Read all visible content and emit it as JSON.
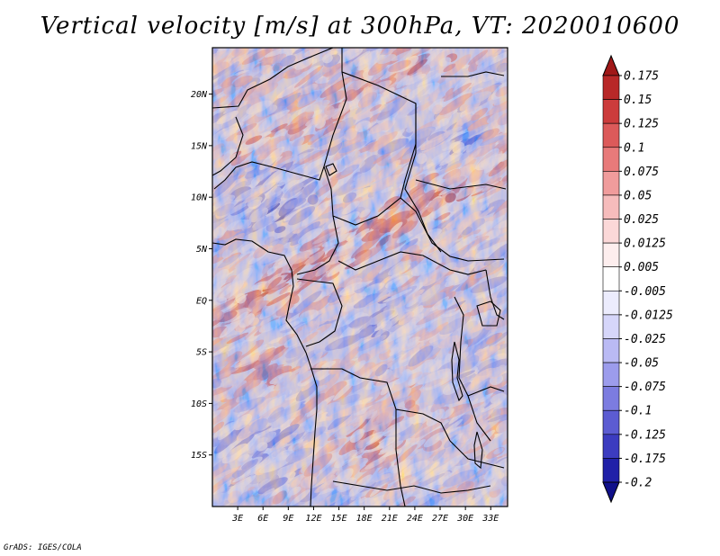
{
  "title": "Vertical velocity [m/s] at 300hPa, VT: 2020010600",
  "credit": "GrADS: IGES/COLA",
  "map": {
    "variable": "Vertical velocity",
    "units": "m/s",
    "level": "300hPa",
    "valid_time": "2020010600",
    "lat_range": [
      -20,
      24.5
    ],
    "lon_range": [
      0,
      35
    ],
    "lat_ticks": [
      {
        "value": 20,
        "label": "20N"
      },
      {
        "value": 15,
        "label": "15N"
      },
      {
        "value": 10,
        "label": "10N"
      },
      {
        "value": 5,
        "label": "5N"
      },
      {
        "value": 0,
        "label": "EQ"
      },
      {
        "value": -5,
        "label": "5S"
      },
      {
        "value": -10,
        "label": "10S"
      },
      {
        "value": -15,
        "label": "15S"
      }
    ],
    "lon_ticks": [
      {
        "value": 3,
        "label": "3E"
      },
      {
        "value": 6,
        "label": "6E"
      },
      {
        "value": 9,
        "label": "9E"
      },
      {
        "value": 12,
        "label": "12E"
      },
      {
        "value": 15,
        "label": "15E"
      },
      {
        "value": 18,
        "label": "18E"
      },
      {
        "value": 21,
        "label": "21E"
      },
      {
        "value": 24,
        "label": "24E"
      },
      {
        "value": 27,
        "label": "27E"
      },
      {
        "value": 30,
        "label": "30E"
      },
      {
        "value": 33,
        "label": "33E"
      }
    ]
  },
  "colorbar": {
    "labels": [
      "0.175",
      "0.15",
      "0.125",
      "0.1",
      "0.075",
      "0.05",
      "0.025",
      "0.0125",
      "0.005",
      "-0.005",
      "-0.0125",
      "-0.025",
      "-0.05",
      "-0.075",
      "-0.1",
      "-0.125",
      "-0.175",
      "-0.2"
    ],
    "colors": [
      "#a01818",
      "#b82828",
      "#cc3c3c",
      "#dc5a5a",
      "#e87a7a",
      "#f09c9c",
      "#f6bcbc",
      "#fbd8d8",
      "#fdeeee",
      "#ffffff",
      "#ececfd",
      "#d6d6fa",
      "#babaf4",
      "#9c9cec",
      "#7c7ce0",
      "#5c5cd2",
      "#3c3cc0",
      "#2020a8",
      "#10108a"
    ]
  }
}
